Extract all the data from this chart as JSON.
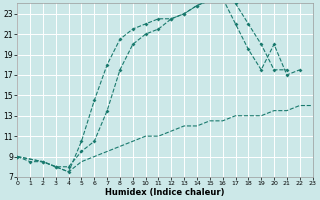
{
  "xlabel": "Humidex (Indice chaleur)",
  "bg_color": "#cce8e8",
  "grid_color": "#ffffff",
  "line_color": "#1a7a6e",
  "xlim": [
    0,
    23
  ],
  "ylim": [
    7,
    24
  ],
  "xticks": [
    0,
    1,
    2,
    3,
    4,
    5,
    6,
    7,
    8,
    9,
    10,
    11,
    12,
    13,
    14,
    15,
    16,
    17,
    18,
    19,
    20,
    21,
    22,
    23
  ],
  "yticks": [
    7,
    9,
    11,
    13,
    15,
    17,
    19,
    21,
    23
  ],
  "curve1_x": [
    0,
    1,
    2,
    3,
    4,
    5,
    6,
    7,
    8,
    9,
    10,
    11,
    12,
    13,
    14,
    15,
    16,
    17,
    18,
    19,
    20,
    21
  ],
  "curve1_y": [
    9,
    8.5,
    8.5,
    8,
    7.5,
    10.5,
    14.5,
    18.0,
    20.5,
    21.5,
    22.0,
    22.5,
    22.5,
    23.0,
    23.8,
    24.3,
    24.5,
    24.0,
    22.0,
    20.0,
    17.5,
    17.5
  ],
  "curve2_x": [
    0,
    2,
    3,
    4,
    5,
    6,
    7,
    8,
    9,
    10,
    11,
    12,
    13,
    14,
    15,
    16,
    17,
    18,
    19,
    20,
    21,
    22
  ],
  "curve2_y": [
    9,
    8.5,
    8.0,
    8.0,
    9.5,
    10.5,
    13.5,
    17.5,
    20.0,
    21.0,
    21.5,
    22.5,
    23.0,
    23.8,
    24.3,
    24.5,
    22.0,
    19.5,
    17.5,
    20.0,
    17.0,
    17.5
  ],
  "curve3_x": [
    0,
    2,
    3,
    4,
    5,
    6,
    7,
    8,
    9,
    10,
    11,
    12,
    13,
    14,
    15,
    16,
    17,
    18,
    19,
    20,
    21,
    22,
    23
  ],
  "curve3_y": [
    9,
    8.5,
    8.0,
    7.5,
    8.5,
    9.0,
    9.5,
    10.0,
    10.5,
    11.0,
    11.0,
    11.5,
    12.0,
    12.0,
    12.5,
    12.5,
    13.0,
    13.0,
    13.0,
    13.5,
    13.5,
    14.0,
    14.0
  ]
}
